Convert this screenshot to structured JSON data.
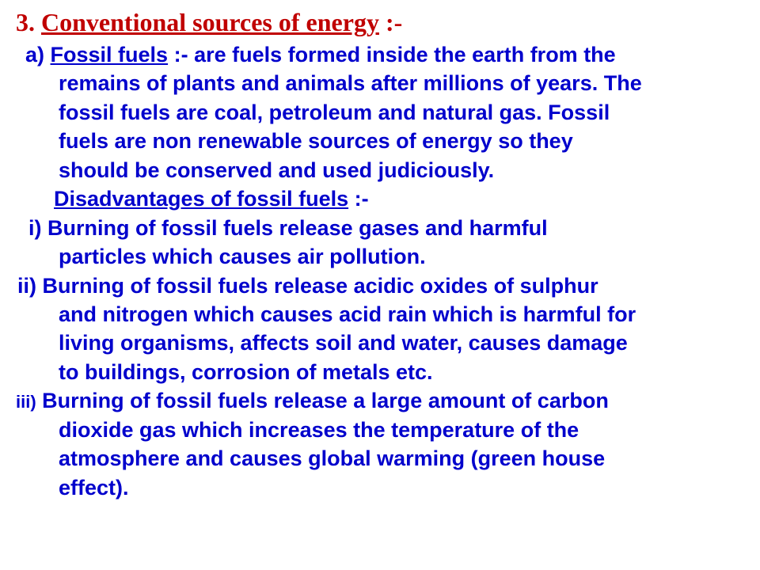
{
  "heading": {
    "number": "3.",
    "title": "Conventional sources of energy",
    "suffix": " :-",
    "color": "#c00000",
    "font": "Times New Roman",
    "fontsize": 32
  },
  "section_a": {
    "label": "a)",
    "term": "Fossil fuels",
    "term_suffix": " :- ",
    "line1_tail": "are fuels formed inside the earth from the",
    "line2": "remains of plants and animals after millions of years. The",
    "line3": "fossil fuels are coal, petroleum and natural gas. Fossil",
    "line4": "fuels are non renewable sources of energy so they",
    "line5": "should be conserved and used judiciously."
  },
  "disadvantages": {
    "title": "Disadvantages of fossil fuels",
    "suffix": " :-"
  },
  "item_i": {
    "label": "i)",
    "line1_tail": " Burning of fossil fuels release gases and harmful",
    "line2": "particles which causes air pollution."
  },
  "item_ii": {
    "label": "ii)",
    "line1_tail": " Burning of fossil fuels release acidic oxides of sulphur",
    "line2": "and nitrogen which causes acid rain which is harmful for",
    "line3": "living organisms, affects soil and water, causes damage",
    "line4": "to buildings, corrosion of metals etc."
  },
  "item_iii": {
    "label": "iii)",
    "line1_tail": " Burning of fossil fuels release a large amount of carbon",
    "line2": "dioxide gas which increases the temperature of the",
    "line3": "atmosphere and causes global warming (green house",
    "line4": "effect)."
  },
  "style": {
    "body_color": "#0000cc",
    "body_fontsize": 27,
    "body_font": "Arial",
    "body_weight": "bold",
    "background": "#ffffff"
  }
}
